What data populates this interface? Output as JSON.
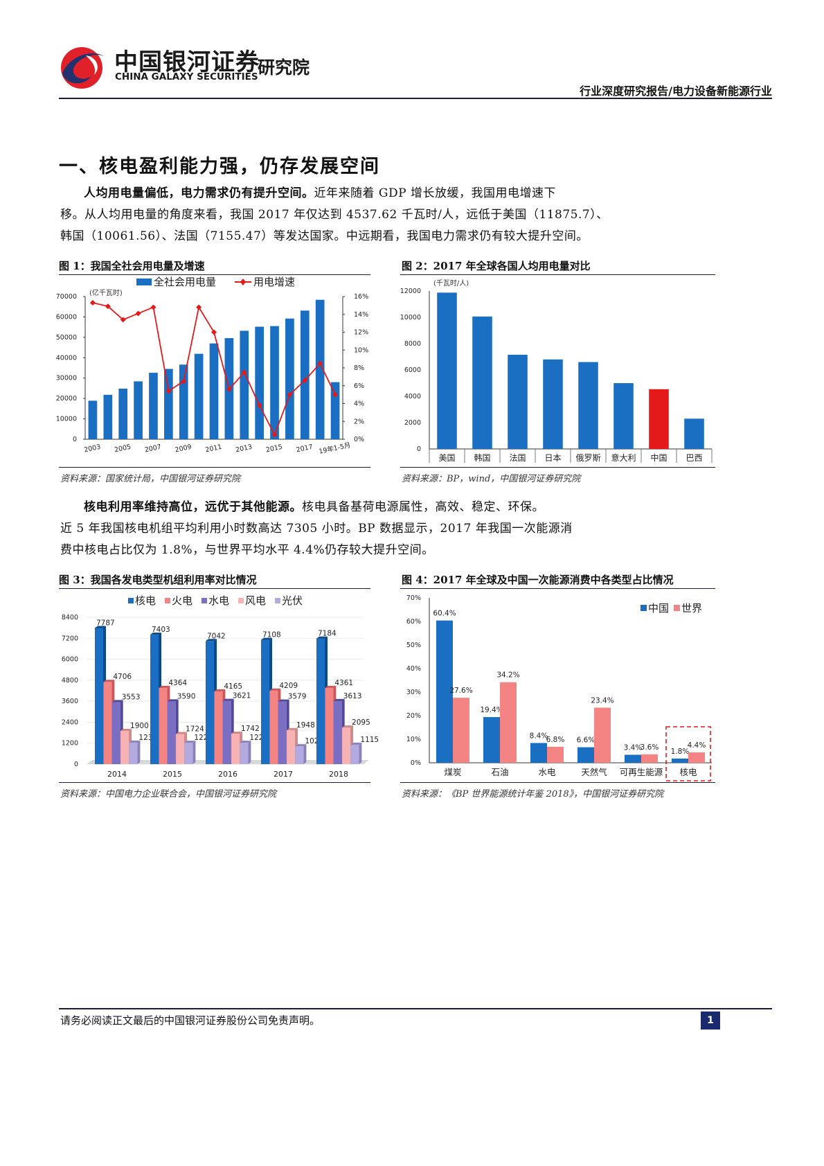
{
  "header": {
    "logo_cn": "中国银河证券",
    "logo_en": "CHINA GALAXY SECURITIES",
    "institute": "研究院",
    "report_type": "行业深度研究报告/电力设备新能源行业"
  },
  "section_title": "一、核电盈利能力强，仍存发展空间",
  "para1": {
    "bold": "人均用电量偏低，电力需求仍有提升空间。",
    "l1": "近年来随着 GDP 增长放缓，我国用电增速下",
    "l2": "移。从人均用电量的角度来看，我国 2017 年仅达到 4537.62 千瓦时/人，远低于美国（11875.7）、",
    "l3": "韩国（10061.56）、法国（7155.47）等发达国家。中远期看，我国电力需求仍有较大提升空间。"
  },
  "para2": {
    "bold": "核电利用率维持高位，远优于其他能源。",
    "l1": "核电具备基荷电源属性，高效、稳定、环保。",
    "l2": "近 5 年我国核电机组平均利用小时数高达 7305 小时。BP 数据显示，2017 年我国一次能源消",
    "l3": "费中核电占比仅为 1.8%，与世界平均水平 4.4%仍存较大提升空间。"
  },
  "fig1": {
    "title": "图 1：我国全社会用电量及增速",
    "source": "资料来源：国家统计局，中国银河证券研究院"
  },
  "fig2": {
    "title": "图 2：2017 年全球各国人均用电量对比",
    "source": "资料来源：BP，wind，中国银河证券研究院"
  },
  "fig3": {
    "title": "图 3：我国各发电类型机组利用率对比情况",
    "source": "资料来源：中国电力企业联合会，中国银河证券研究院"
  },
  "fig4": {
    "title": "图 4：2017 年全球及中国一次能源消费中各类型占比情况",
    "source": "资料来源：《BP 世界能源统计年鉴 2018》，中国银河证券研究院"
  },
  "footer": {
    "disclaimer": "请务必阅读正文最后的中国银河证券股份公司免责声明。",
    "page": "1"
  },
  "colors": {
    "blue": "#1a6fc2",
    "red": "#e41a1a",
    "pink": "#f48484",
    "purple": "#7a6fc2",
    "light_pink": "#f7b3b3",
    "lavender": "#b3abe0",
    "navy": "#1a1a3a"
  },
  "chart_data": [
    {
      "type": "bar",
      "unit_note": "(亿千瓦时)",
      "categories": [
        "2003",
        "2004",
        "2005",
        "2006",
        "2007",
        "2008",
        "2009",
        "2010",
        "2011",
        "2012",
        "2013",
        "2014",
        "2015",
        "2016",
        "2017",
        "2018",
        "19年1-5月"
      ],
      "tick_labels": [
        "2003",
        "2005",
        "2007",
        "2009",
        "2011",
        "2013",
        "2015",
        "2017",
        "19年1-5月"
      ],
      "series": [
        {
          "name": "全社会用电量",
          "kind": "bar",
          "axis": "left",
          "values": [
            18900,
            21800,
            24800,
            28400,
            32600,
            34500,
            36600,
            41900,
            47000,
            49600,
            53200,
            55200,
            55500,
            59200,
            63100,
            68400,
            28000
          ]
        },
        {
          "name": "用电增速",
          "kind": "line",
          "axis": "right",
          "values": [
            15.3,
            14.9,
            13.4,
            14.1,
            14.8,
            5.4,
            6.5,
            14.8,
            12.0,
            5.6,
            7.5,
            3.8,
            0.5,
            5.0,
            6.6,
            8.5,
            5.0
          ]
        }
      ],
      "ylim": [
        0,
        70000
      ],
      "yticks": [
        "0",
        "10000",
        "20000",
        "30000",
        "40000",
        "50000",
        "60000",
        "70000"
      ],
      "y2lim": [
        0,
        16
      ],
      "y2ticks": [
        "0%",
        "2%",
        "4%",
        "6%",
        "8%",
        "10%",
        "12%",
        "14%",
        "16%"
      ],
      "legend": "top"
    },
    {
      "type": "bar",
      "unit_note": "(千瓦时/人)",
      "categories": [
        "美国",
        "韩国",
        "法国",
        "日本",
        "俄罗斯",
        "意大利",
        "中国",
        "巴西"
      ],
      "values": [
        11875.7,
        10061.56,
        7155.47,
        6800,
        6600,
        5000,
        4537.62,
        2300
      ],
      "highlight": "中国",
      "ylim": [
        0,
        12000
      ],
      "yticks": [
        "0",
        "2000",
        "4000",
        "6000",
        "8000",
        "10000",
        "12000"
      ]
    },
    {
      "type": "bar",
      "categories": [
        "2014",
        "2015",
        "2016",
        "2017",
        "2018"
      ],
      "series": [
        {
          "name": "核电",
          "values": [
            7787,
            7403,
            7042,
            7108,
            7184
          ]
        },
        {
          "name": "火电",
          "values": [
            4706,
            4364,
            4165,
            4209,
            4361
          ]
        },
        {
          "name": "水电",
          "values": [
            3553,
            3590,
            3621,
            3579,
            3613
          ]
        },
        {
          "name": "风电",
          "values": [
            1900,
            1724,
            1742,
            1948,
            2095
          ]
        },
        {
          "name": "光伏",
          "values": [
            1235,
            1225,
            1222,
            1025,
            1115
          ]
        }
      ],
      "ylim": [
        0,
        8400
      ],
      "yticks": [
        "0",
        "1200",
        "2400",
        "3600",
        "4800",
        "6000",
        "7200",
        "8400"
      ],
      "legend": "top"
    },
    {
      "type": "bar",
      "categories": [
        "煤炭",
        "石油",
        "水电",
        "天然气",
        "可再生能源",
        "核电"
      ],
      "series": [
        {
          "name": "中国",
          "values": [
            60.4,
            19.4,
            8.4,
            6.6,
            3.4,
            1.8
          ],
          "labels": [
            "60.4%",
            "19.4%",
            "8.4%",
            "6.6%",
            "3.4%",
            "1.8%"
          ]
        },
        {
          "name": "世界",
          "values": [
            27.6,
            34.2,
            6.8,
            23.4,
            3.6,
            4.4
          ],
          "labels": [
            "27.6%",
            "34.2%",
            "6.8%",
            "23.4%",
            "3.6%",
            "4.4%"
          ]
        }
      ],
      "ylim": [
        0,
        70
      ],
      "yticks": [
        "0%",
        "10%",
        "20%",
        "30%",
        "40%",
        "50%",
        "60%",
        "70%"
      ],
      "highlight_category": "核电",
      "legend": "top-right"
    }
  ]
}
